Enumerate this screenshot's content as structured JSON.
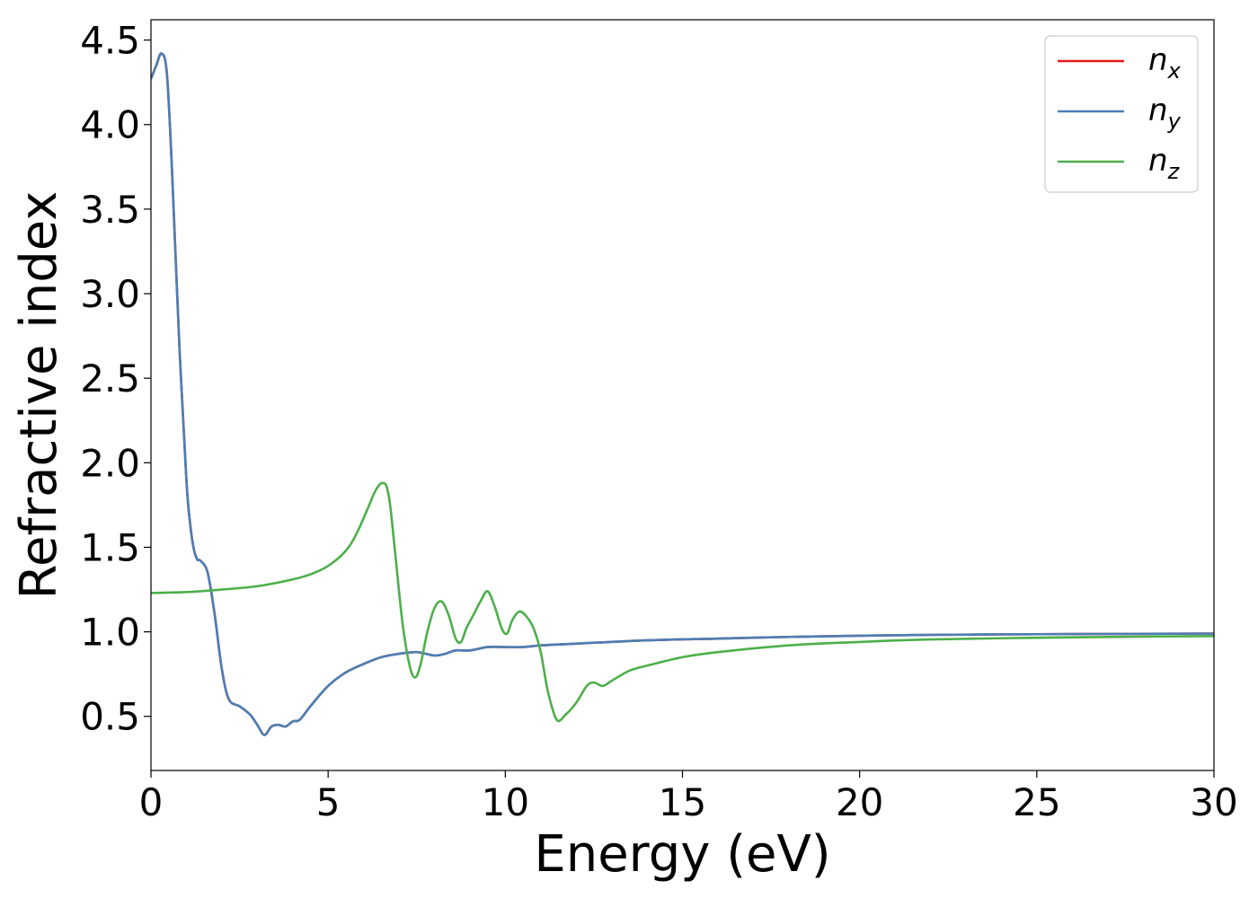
{
  "chart_data": {
    "type": "line",
    "title": "",
    "xlabel": "Energy (eV)",
    "ylabel": "Refractive index",
    "xlim": [
      0,
      30
    ],
    "ylim": [
      0.18,
      4.62
    ],
    "xticks": [
      0,
      5,
      10,
      15,
      20,
      25,
      30
    ],
    "xtick_labels": [
      "0",
      "5",
      "10",
      "15",
      "20",
      "25",
      "30"
    ],
    "yticks": [
      0.5,
      1.0,
      1.5,
      2.0,
      2.5,
      3.0,
      3.5,
      4.0,
      4.5
    ],
    "ytick_labels": [
      "0.5",
      "1.0",
      "1.5",
      "2.0",
      "2.5",
      "3.0",
      "3.5",
      "4.0",
      "4.5"
    ],
    "grid": false,
    "legend_position": "top-right",
    "series": [
      {
        "name": "n",
        "subscript": "x",
        "color": "#e41a1c",
        "x": [
          0,
          0.15,
          0.3,
          0.45,
          0.6,
          0.8,
          1.0,
          1.1,
          1.2,
          1.3,
          1.4,
          1.6,
          1.8,
          2.0,
          2.2,
          2.5,
          2.8,
          3.0,
          3.2,
          3.4,
          3.6,
          3.8,
          4.0,
          4.2,
          4.5,
          5.0,
          5.5,
          6.0,
          6.5,
          7.0,
          7.5,
          8.0,
          8.3,
          8.6,
          9.0,
          9.5,
          10.0,
          10.5,
          11.0,
          12.0,
          14.0,
          16.0,
          18.0,
          20.0,
          22.0,
          25.0,
          28.0,
          30.0
        ],
        "y": [
          4.27,
          4.35,
          4.42,
          4.3,
          3.7,
          2.7,
          1.9,
          1.65,
          1.5,
          1.43,
          1.42,
          1.35,
          1.1,
          0.78,
          0.6,
          0.56,
          0.51,
          0.45,
          0.39,
          0.44,
          0.45,
          0.44,
          0.47,
          0.48,
          0.56,
          0.68,
          0.76,
          0.81,
          0.85,
          0.87,
          0.88,
          0.86,
          0.87,
          0.89,
          0.89,
          0.91,
          0.91,
          0.91,
          0.92,
          0.93,
          0.95,
          0.96,
          0.97,
          0.977,
          0.982,
          0.986,
          0.988,
          0.99
        ]
      },
      {
        "name": "n",
        "subscript": "y",
        "color": "#4a7fb5",
        "x": [
          0,
          0.15,
          0.3,
          0.45,
          0.6,
          0.8,
          1.0,
          1.1,
          1.2,
          1.3,
          1.4,
          1.6,
          1.8,
          2.0,
          2.2,
          2.5,
          2.8,
          3.0,
          3.2,
          3.4,
          3.6,
          3.8,
          4.0,
          4.2,
          4.5,
          5.0,
          5.5,
          6.0,
          6.5,
          7.0,
          7.5,
          8.0,
          8.3,
          8.6,
          9.0,
          9.5,
          10.0,
          10.5,
          11.0,
          12.0,
          14.0,
          16.0,
          18.0,
          20.0,
          22.0,
          25.0,
          28.0,
          30.0
        ],
        "y": [
          4.27,
          4.35,
          4.42,
          4.3,
          3.7,
          2.7,
          1.9,
          1.65,
          1.5,
          1.43,
          1.42,
          1.35,
          1.1,
          0.78,
          0.6,
          0.56,
          0.51,
          0.45,
          0.39,
          0.44,
          0.45,
          0.44,
          0.47,
          0.48,
          0.56,
          0.68,
          0.76,
          0.81,
          0.85,
          0.87,
          0.88,
          0.86,
          0.87,
          0.89,
          0.89,
          0.91,
          0.91,
          0.91,
          0.92,
          0.93,
          0.95,
          0.96,
          0.97,
          0.977,
          0.982,
          0.986,
          0.988,
          0.99
        ]
      },
      {
        "name": "n",
        "subscript": "z",
        "color": "#4daf4a",
        "x": [
          0,
          1.0,
          2.0,
          3.0,
          4.0,
          4.5,
          5.0,
          5.5,
          5.8,
          6.1,
          6.3,
          6.45,
          6.55,
          6.65,
          6.75,
          6.9,
          7.1,
          7.3,
          7.45,
          7.6,
          7.8,
          8.0,
          8.2,
          8.4,
          8.6,
          8.75,
          8.9,
          9.1,
          9.3,
          9.5,
          9.7,
          9.9,
          10.05,
          10.2,
          10.4,
          10.6,
          10.8,
          11.0,
          11.2,
          11.45,
          11.7,
          12.0,
          12.3,
          12.5,
          12.75,
          13.0,
          13.5,
          14.0,
          15.0,
          16.0,
          18.0,
          20.0,
          22.0,
          25.0,
          28.0,
          30.0
        ],
        "y": [
          1.23,
          1.235,
          1.25,
          1.27,
          1.31,
          1.34,
          1.39,
          1.48,
          1.58,
          1.72,
          1.82,
          1.87,
          1.88,
          1.86,
          1.75,
          1.45,
          1.05,
          0.8,
          0.73,
          0.8,
          1.0,
          1.14,
          1.18,
          1.1,
          0.96,
          0.94,
          1.02,
          1.1,
          1.18,
          1.24,
          1.15,
          1.02,
          0.99,
          1.07,
          1.12,
          1.09,
          1.02,
          0.88,
          0.65,
          0.48,
          0.51,
          0.58,
          0.68,
          0.7,
          0.68,
          0.71,
          0.77,
          0.8,
          0.85,
          0.88,
          0.92,
          0.94,
          0.955,
          0.965,
          0.972,
          0.975
        ]
      }
    ]
  }
}
